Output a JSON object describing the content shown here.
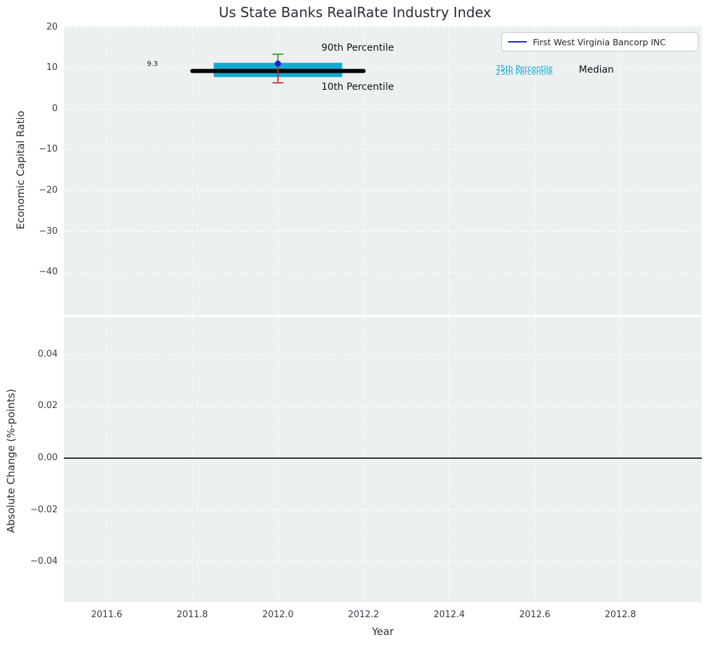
{
  "figure": {
    "title": "Us State Banks RealRate Industry Index",
    "colors": {
      "plot_background": "#ecf0f1",
      "grid": "#ffffff",
      "company": "#2222cc",
      "iqr_band": "#17a9ce",
      "percentile_90": "#2ca02c",
      "percentile_10": "#d62728",
      "median": "#000000",
      "zero_line": "#000000"
    }
  },
  "chart_data": [
    {
      "type": "scatter",
      "panel": "top",
      "title": "Us State Banks RealRate Industry Index",
      "ylabel": "Economic Capital Ratio",
      "xlabel": "Year",
      "xlim": [
        2011.5,
        2012.99
      ],
      "ylim": [
        -50.4,
        20.3
      ],
      "grid": true,
      "xticks": {
        "values": [
          2011.6,
          2011.8,
          2012.0,
          2012.2,
          2012.4,
          2012.6,
          2012.8
        ],
        "labels": [
          "2011.6",
          "2011.8",
          "2012.0",
          "2012.2",
          "2012.4",
          "2012.6",
          "2012.8"
        ]
      },
      "yticks": {
        "values": [
          20,
          10,
          0,
          -10,
          -20,
          -30,
          -40
        ],
        "labels": [
          "20",
          "10",
          "0",
          "−10",
          "−20",
          "−30",
          "−40"
        ]
      },
      "legend": {
        "position": "upper right",
        "label": "First West Virginia Bancorp INC"
      },
      "company_point": {
        "name": "First West Virginia Bancorp INC",
        "x": 2012.0,
        "y": 11.1
      },
      "percentile_90": {
        "x": 2012.0,
        "value": 13.4,
        "label": "90th Percentile"
      },
      "percentile_10": {
        "x": 2012.0,
        "value": 6.4,
        "label": "10th Percentile"
      },
      "iqr_band": {
        "x_start": 2011.85,
        "x_end": 2012.15,
        "p25": 7.8,
        "p75": 11.3,
        "label_25": "25th Percentile",
        "label_75": "75th Percentile"
      },
      "median": {
        "x_start": 2011.8,
        "x_end": 2012.2,
        "value": 9.3,
        "annotation": "9.3",
        "label": "Median"
      }
    },
    {
      "type": "line",
      "panel": "bottom",
      "ylabel": "Absolute Change (%-points)",
      "xlabel": "Year",
      "xlim": [
        2011.5,
        2012.99
      ],
      "ylim": [
        -0.0555,
        0.0545
      ],
      "grid": true,
      "xticks": {
        "values": [
          2011.6,
          2011.8,
          2012.0,
          2012.2,
          2012.4,
          2012.6,
          2012.8
        ],
        "labels": [
          "2011.6",
          "2011.8",
          "2012.0",
          "2012.2",
          "2012.4",
          "2012.6",
          "2012.8"
        ]
      },
      "yticks": {
        "values": [
          0.04,
          0.02,
          0,
          -0.02,
          -0.04
        ],
        "labels": [
          "0.04",
          "0.02",
          "0.00",
          "−0.02",
          "−0.04"
        ]
      },
      "zero_line": {
        "value": 0.0
      }
    }
  ]
}
